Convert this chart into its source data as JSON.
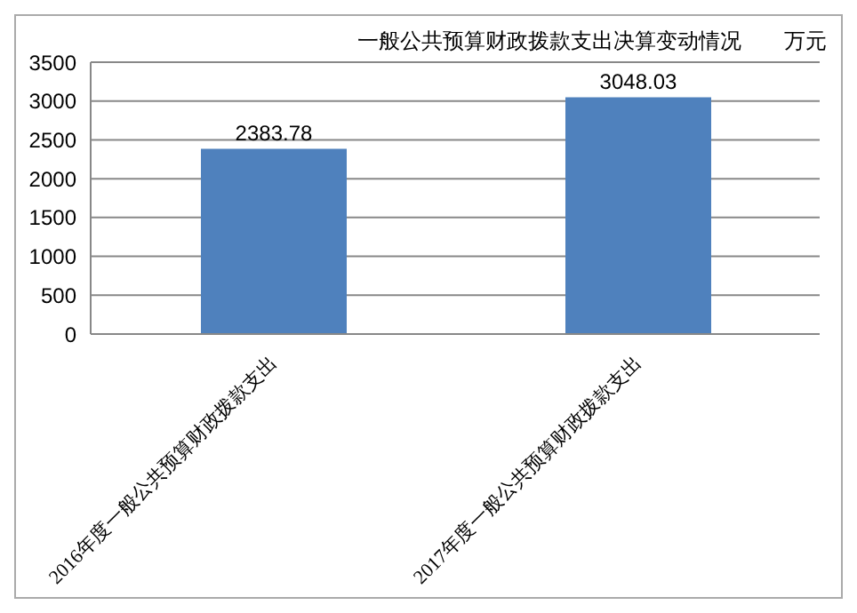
{
  "chart_data": {
    "type": "bar",
    "title": "一般公共预算财政拨款支出决算变动情况　　万元",
    "categories": [
      "2016年度一般公共预算财政拨款支出",
      "2017年度一般公共预算财政拨款支出"
    ],
    "values": [
      2383.78,
      3048.03
    ],
    "color": "#4f81bd",
    "ylim": [
      0,
      3500
    ],
    "yticks": [
      0,
      500,
      1000,
      1500,
      2000,
      2500,
      3000,
      3500
    ],
    "grid": "y",
    "data_labels": true
  }
}
